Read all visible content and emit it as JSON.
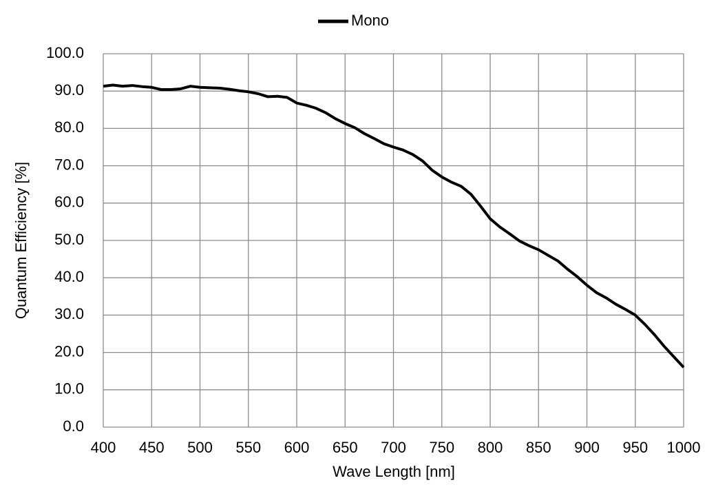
{
  "chart_data": {
    "type": "line",
    "xlabel": "Wave Length [nm]",
    "ylabel": "Quantum Efficiency [%]",
    "x": [
      400,
      410,
      420,
      430,
      440,
      450,
      460,
      470,
      480,
      490,
      500,
      510,
      520,
      530,
      540,
      550,
      560,
      570,
      580,
      590,
      600,
      610,
      620,
      630,
      640,
      650,
      660,
      670,
      680,
      690,
      700,
      710,
      720,
      730,
      740,
      750,
      760,
      770,
      780,
      790,
      800,
      810,
      820,
      830,
      840,
      850,
      860,
      870,
      880,
      890,
      900,
      910,
      920,
      930,
      940,
      950,
      960,
      970,
      980,
      990,
      1000
    ],
    "series": [
      {
        "name": "Mono",
        "color": "#000000",
        "values": [
          91.3,
          91.6,
          91.3,
          91.5,
          91.2,
          91.0,
          90.4,
          90.4,
          90.6,
          91.3,
          91.0,
          90.9,
          90.8,
          90.5,
          90.1,
          89.8,
          89.3,
          88.5,
          88.6,
          88.3,
          86.8,
          86.2,
          85.4,
          84.2,
          82.6,
          81.3,
          80.2,
          78.6,
          77.3,
          75.9,
          75.0,
          74.2,
          73.0,
          71.3,
          68.8,
          67.0,
          65.6,
          64.5,
          62.4,
          59.2,
          55.8,
          53.6,
          51.8,
          49.9,
          48.6,
          47.5,
          46.0,
          44.5,
          42.3,
          40.3,
          38.0,
          36.0,
          34.6,
          32.9,
          31.5,
          30.0,
          27.5,
          24.7,
          21.6,
          18.8,
          16.0
        ]
      }
    ],
    "xlim": [
      400,
      1000
    ],
    "xticks": [
      400,
      450,
      500,
      550,
      600,
      650,
      700,
      750,
      800,
      850,
      900,
      950,
      1000
    ],
    "ylim": [
      0,
      100
    ],
    "yticks": [
      {
        "value": 0,
        "label": "0.0"
      },
      {
        "value": 10,
        "label": "10.0"
      },
      {
        "value": 20,
        "label": "20.0"
      },
      {
        "value": 30,
        "label": "30.0"
      },
      {
        "value": 40,
        "label": "40.0"
      },
      {
        "value": 50,
        "label": "50.0"
      },
      {
        "value": 60,
        "label": "60.0"
      },
      {
        "value": 70,
        "label": "70.0"
      },
      {
        "value": 80,
        "label": "80.0"
      },
      {
        "value": 90,
        "label": "90.0"
      },
      {
        "value": 100,
        "label": "100.0"
      }
    ],
    "grid": true,
    "legend": "top"
  }
}
